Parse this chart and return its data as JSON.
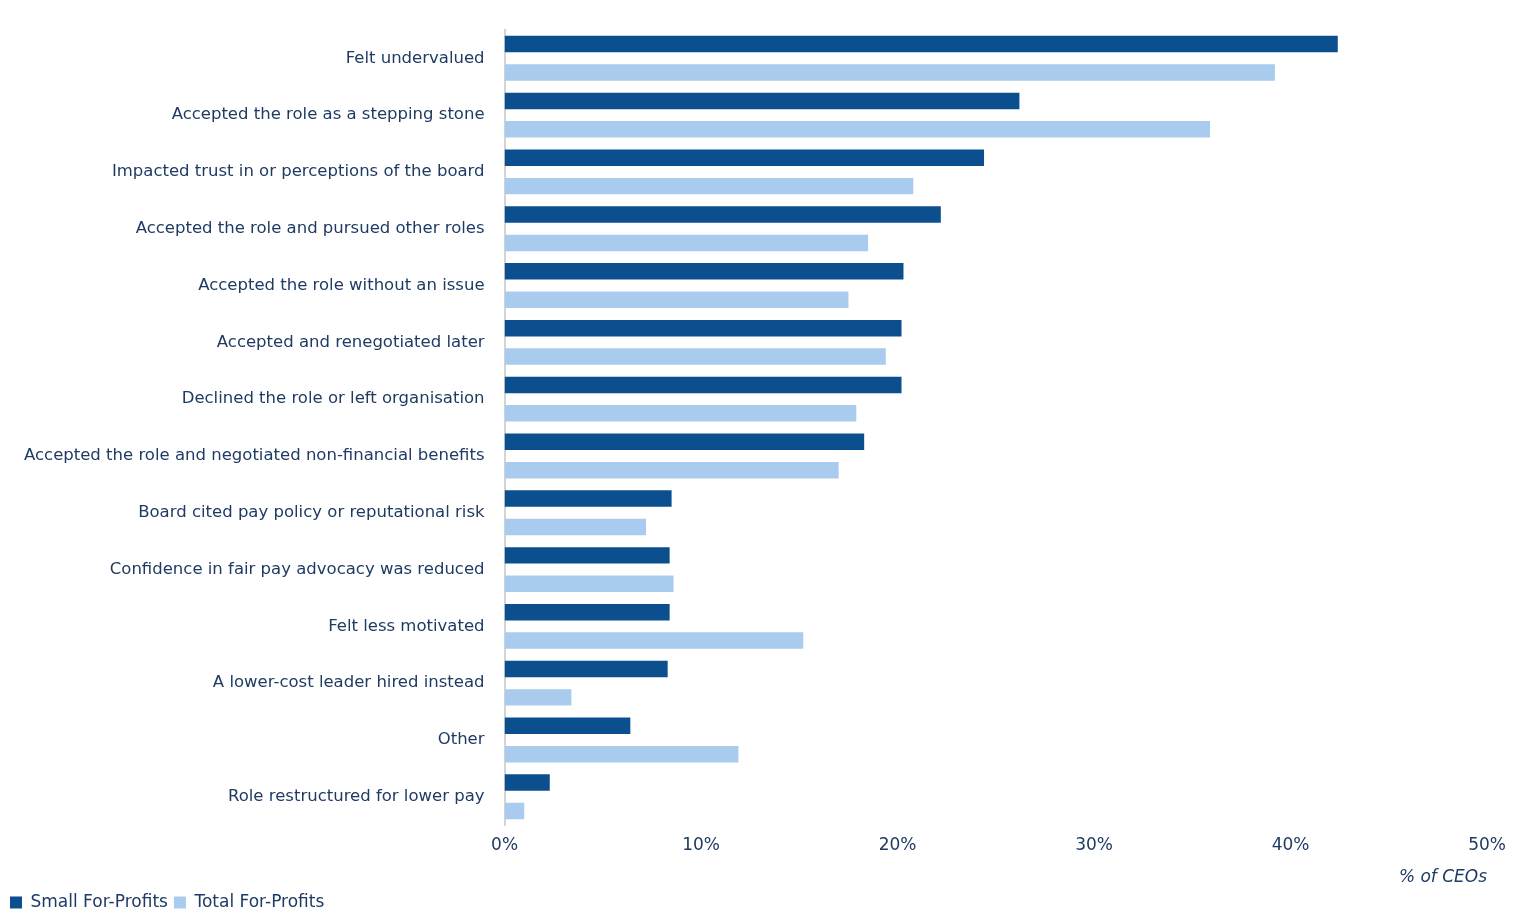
{
  "chart_data": {
    "type": "bar",
    "orientation": "horizontal",
    "categories": [
      "Felt undervalued",
      "Accepted the role as a stepping stone",
      "Impacted trust in or perceptions of the board",
      "Accepted the role and pursued other roles",
      "Accepted the role without an issue",
      "Accepted and renegotiated later",
      "Declined the role or left organisation",
      "Accepted the role and negotiated non-financial benefits",
      "Board cited pay policy or reputational risk",
      "Confidence in fair pay advocacy was reduced",
      "Felt less motivated",
      "A lower-cost leader hired instead",
      "Other",
      "Role restructured for lower pay"
    ],
    "series": [
      {
        "name": "Small For-Profits",
        "color": "#0b4f8f",
        "values": [
          42.4,
          26.2,
          24.4,
          22.2,
          20.3,
          20.2,
          20.2,
          18.3,
          8.5,
          8.4,
          8.4,
          8.3,
          6.4,
          2.3
        ]
      },
      {
        "name": "Total For-Profits",
        "color": "#a9cbed",
        "values": [
          39.2,
          35.9,
          20.8,
          18.5,
          17.5,
          19.4,
          17.9,
          17.0,
          7.2,
          8.6,
          15.2,
          3.4,
          11.9,
          1.0
        ]
      }
    ],
    "xlabel": "% of CEOs",
    "xlim": [
      0,
      50
    ],
    "xticks": [
      {
        "value": 0,
        "label": "0%"
      },
      {
        "value": 10,
        "label": "10%"
      },
      {
        "value": 20,
        "label": "20%"
      },
      {
        "value": 30,
        "label": "30%"
      },
      {
        "value": 40,
        "label": "40%"
      },
      {
        "value": 50,
        "label": "50%"
      }
    ],
    "grid": false,
    "legend": "bottom left"
  }
}
